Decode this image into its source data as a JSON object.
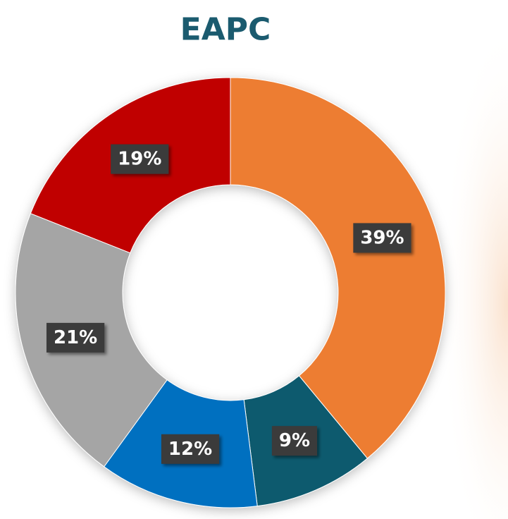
{
  "chart_data": {
    "type": "donut",
    "title": "EAPC",
    "values": [
      39,
      9,
      12,
      21,
      19
    ],
    "value_labels": [
      "39%",
      "9%",
      "12%",
      "21%",
      "19%"
    ],
    "colors": [
      "#ed7d31",
      "#0e5a6e",
      "#0070c0",
      "#a5a5a5",
      "#c00000"
    ]
  }
}
